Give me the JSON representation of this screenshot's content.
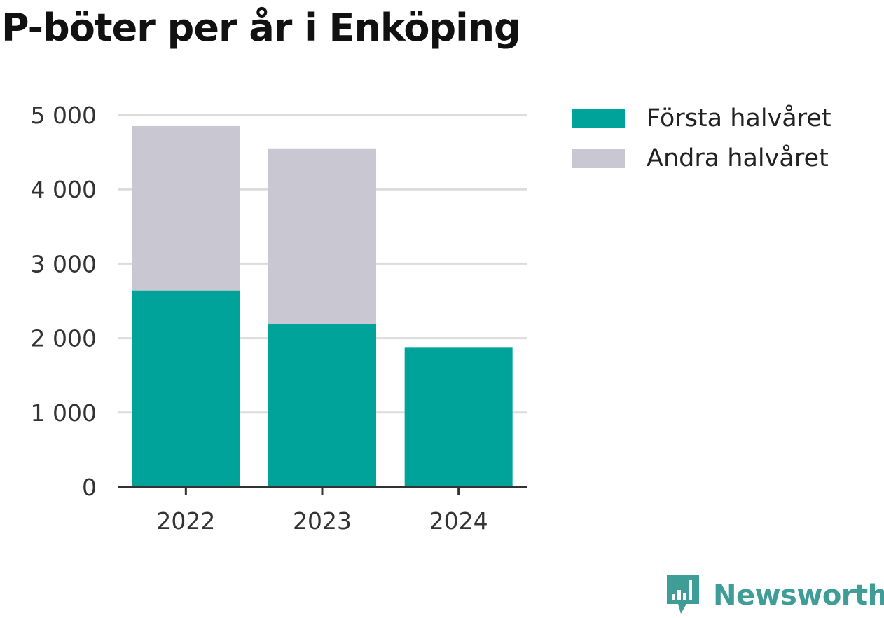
{
  "colors": {
    "first_half": "#00a39a",
    "second_half": "#c8c7d2",
    "grid": "#dcdcdc",
    "axis": "#333333",
    "brand": "#3f9d98"
  },
  "chart_data": {
    "type": "bar",
    "stacked": true,
    "title": "P-böter per år i Enköping",
    "categories": [
      "2022",
      "2023",
      "2024"
    ],
    "series": [
      {
        "name": "Första halvåret",
        "values": [
          2640,
          2190,
          1880
        ]
      },
      {
        "name": "Andra halvåret",
        "values": [
          2210,
          2360,
          0
        ]
      }
    ],
    "ylim": [
      0,
      5000
    ],
    "yticks": [
      0,
      1000,
      2000,
      3000,
      4000,
      5000
    ],
    "ytick_labels": [
      "0",
      "1 000",
      "2 000",
      "3 000",
      "4 000",
      "5 000"
    ],
    "grid": true,
    "legend_position": "top-right"
  },
  "legend": [
    {
      "label": "Första halvåret"
    },
    {
      "label": "Andra halvåret"
    }
  ],
  "branding": {
    "name": "Newsworthy",
    "icon": "newsworthy-logo-icon"
  }
}
